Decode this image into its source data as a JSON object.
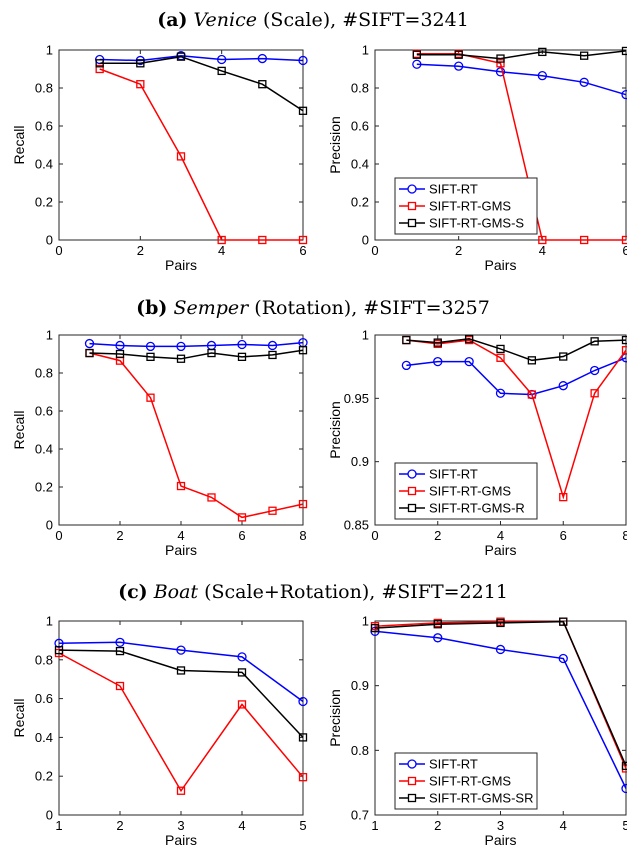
{
  "panels": [
    {
      "letter": "(a)",
      "dataset": "Venice",
      "rest": "(Scale), #SIFT=3241"
    },
    {
      "letter": "(b)",
      "dataset": "Semper",
      "rest": "(Rotation), #SIFT=3257"
    },
    {
      "letter": "(c)",
      "dataset": "Boat",
      "rest": "(Scale+Rotation), #SIFT=2211"
    }
  ],
  "colors": {
    "SIFT-RT": "#0000ff",
    "GMS": "#ff0000",
    "extra": "#000000"
  },
  "chart_data": [
    {
      "type": "line",
      "panel": 0,
      "side": "left",
      "xlabel": "Pairs",
      "ylabel": "Recall",
      "xlim": [
        0,
        6
      ],
      "ylim": [
        0,
        1
      ],
      "xticks": [
        0,
        2,
        4,
        6
      ],
      "yticks": [
        0,
        0.2,
        0.4,
        0.6,
        0.8,
        1
      ],
      "x": [
        1,
        2,
        3,
        4,
        5,
        6
      ],
      "series": [
        {
          "name": "SIFT-RT",
          "values": [
            0.95,
            0.945,
            0.97,
            0.95,
            0.955,
            0.945
          ]
        },
        {
          "name": "SIFT-RT-GMS",
          "values": [
            0.9,
            0.82,
            0.44,
            0.0,
            0.0,
            0.0
          ]
        },
        {
          "name": "SIFT-RT-GMS-S",
          "values": [
            0.93,
            0.93,
            0.965,
            0.89,
            0.82,
            0.68
          ]
        }
      ]
    },
    {
      "type": "line",
      "panel": 0,
      "side": "right",
      "xlabel": "Pairs",
      "ylabel": "Precision",
      "xlim": [
        0,
        6
      ],
      "ylim": [
        0,
        1
      ],
      "xticks": [
        0,
        2,
        4,
        6
      ],
      "yticks": [
        0,
        0.2,
        0.4,
        0.6,
        0.8,
        1
      ],
      "x": [
        1,
        2,
        3,
        4,
        5,
        6
      ],
      "legend": "bottom-left",
      "series": [
        {
          "name": "SIFT-RT",
          "values": [
            0.925,
            0.915,
            0.885,
            0.865,
            0.83,
            0.765
          ]
        },
        {
          "name": "SIFT-RT-GMS",
          "values": [
            0.98,
            0.98,
            0.93,
            0.0,
            0.0,
            0.0
          ]
        },
        {
          "name": "SIFT-RT-GMS-S",
          "values": [
            0.975,
            0.975,
            0.955,
            0.99,
            0.97,
            0.995
          ]
        }
      ]
    },
    {
      "type": "line",
      "panel": 1,
      "side": "left",
      "xlabel": "Pairs",
      "ylabel": "Recall",
      "xlim": [
        0,
        8
      ],
      "ylim": [
        0,
        1
      ],
      "xticks": [
        0,
        2,
        4,
        6,
        8
      ],
      "yticks": [
        0,
        0.2,
        0.4,
        0.6,
        0.8,
        1
      ],
      "x": [
        1,
        2,
        3,
        4,
        5,
        6,
        7,
        8
      ],
      "series": [
        {
          "name": "SIFT-RT",
          "values": [
            0.955,
            0.945,
            0.94,
            0.94,
            0.945,
            0.95,
            0.945,
            0.96
          ]
        },
        {
          "name": "SIFT-RT-GMS",
          "values": [
            0.905,
            0.865,
            0.67,
            0.205,
            0.145,
            0.04,
            0.075,
            0.11
          ]
        },
        {
          "name": "SIFT-RT-GMS-R",
          "values": [
            0.905,
            0.9,
            0.885,
            0.875,
            0.905,
            0.885,
            0.895,
            0.92
          ]
        }
      ]
    },
    {
      "type": "line",
      "panel": 1,
      "side": "right",
      "xlabel": "Pairs",
      "ylabel": "Precision",
      "xlim": [
        0,
        8
      ],
      "ylim": [
        0.85,
        1
      ],
      "xticks": [
        0,
        2,
        4,
        6,
        8
      ],
      "yticks": [
        0.85,
        0.9,
        0.95,
        1
      ],
      "x": [
        1,
        2,
        3,
        4,
        5,
        6,
        7,
        8
      ],
      "legend": "bottom-left",
      "series": [
        {
          "name": "SIFT-RT",
          "values": [
            0.976,
            0.979,
            0.979,
            0.954,
            0.953,
            0.96,
            0.972,
            0.982
          ]
        },
        {
          "name": "SIFT-RT-GMS",
          "values": [
            0.996,
            0.993,
            0.996,
            0.982,
            0.953,
            0.872,
            0.954,
            0.988
          ]
        },
        {
          "name": "SIFT-RT-GMS-R",
          "values": [
            0.996,
            0.994,
            0.997,
            0.989,
            0.98,
            0.983,
            0.995,
            0.996
          ]
        }
      ]
    },
    {
      "type": "line",
      "panel": 2,
      "side": "left",
      "xlabel": "Pairs",
      "ylabel": "Recall",
      "xlim": [
        1,
        5
      ],
      "ylim": [
        0,
        1
      ],
      "xticks": [
        1,
        2,
        3,
        4,
        5
      ],
      "yticks": [
        0,
        0.2,
        0.4,
        0.6,
        0.8,
        1
      ],
      "x": [
        1,
        2,
        3,
        4,
        5
      ],
      "series": [
        {
          "name": "SIFT-RT",
          "values": [
            0.885,
            0.89,
            0.85,
            0.815,
            0.585
          ]
        },
        {
          "name": "SIFT-RT-GMS",
          "values": [
            0.835,
            0.665,
            0.125,
            0.57,
            0.195
          ]
        },
        {
          "name": "SIFT-RT-GMS-SR",
          "values": [
            0.85,
            0.845,
            0.745,
            0.735,
            0.4
          ]
        }
      ]
    },
    {
      "type": "line",
      "panel": 2,
      "side": "right",
      "xlabel": "Pairs",
      "ylabel": "Precision",
      "xlim": [
        1,
        5
      ],
      "ylim": [
        0.7,
        1
      ],
      "xticks": [
        1,
        2,
        3,
        4,
        5
      ],
      "yticks": [
        0.7,
        0.8,
        0.9,
        1
      ],
      "x": [
        1,
        2,
        3,
        4,
        5
      ],
      "legend": "bottom-left",
      "series": [
        {
          "name": "SIFT-RT",
          "values": [
            0.984,
            0.974,
            0.956,
            0.942,
            0.741
          ]
        },
        {
          "name": "SIFT-RT-GMS",
          "values": [
            0.992,
            0.997,
            0.999,
            0.999,
            0.772
          ]
        },
        {
          "name": "SIFT-RT-GMS-SR",
          "values": [
            0.989,
            0.995,
            0.997,
            0.999,
            0.776
          ]
        }
      ]
    }
  ]
}
